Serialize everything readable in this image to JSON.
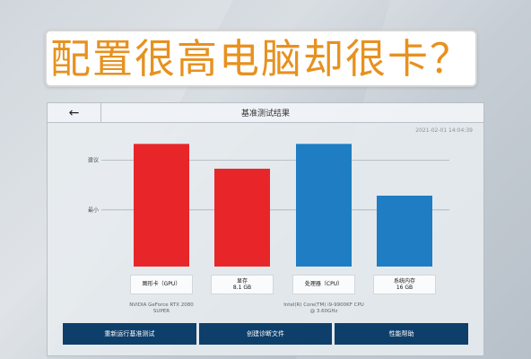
{
  "headline": "配置很高电脑却很卡？",
  "window": {
    "back_icon": "←",
    "title": "基准测试结果",
    "timestamp": "2021-02-01 14:04:39"
  },
  "chart_data": {
    "type": "bar",
    "title": "",
    "y_levels": [
      "建议",
      "最小"
    ],
    "categories": [
      "图形卡（GPU）",
      "显存",
      "处理器（CPU）",
      "系统内存"
    ],
    "category_values": [
      "",
      "8.1 GB",
      "",
      "16 GB"
    ],
    "details": [
      "NVIDIA GeForce RTX 2080 SUPER",
      "",
      "Intel(R) Core(TM) i9-9900KF CPU @ 3.60GHz",
      ""
    ],
    "values": [
      1.73,
      1.38,
      1.73,
      1.0
    ],
    "colors": [
      "#e8262a",
      "#e8262a",
      "#1e7dc3",
      "#1e7dc3"
    ],
    "ylim": [
      0,
      2
    ]
  },
  "buttons": {
    "rerun": "重新运行基准测试",
    "create_diag": "创建诊断文件",
    "perf_help": "性能帮助"
  }
}
